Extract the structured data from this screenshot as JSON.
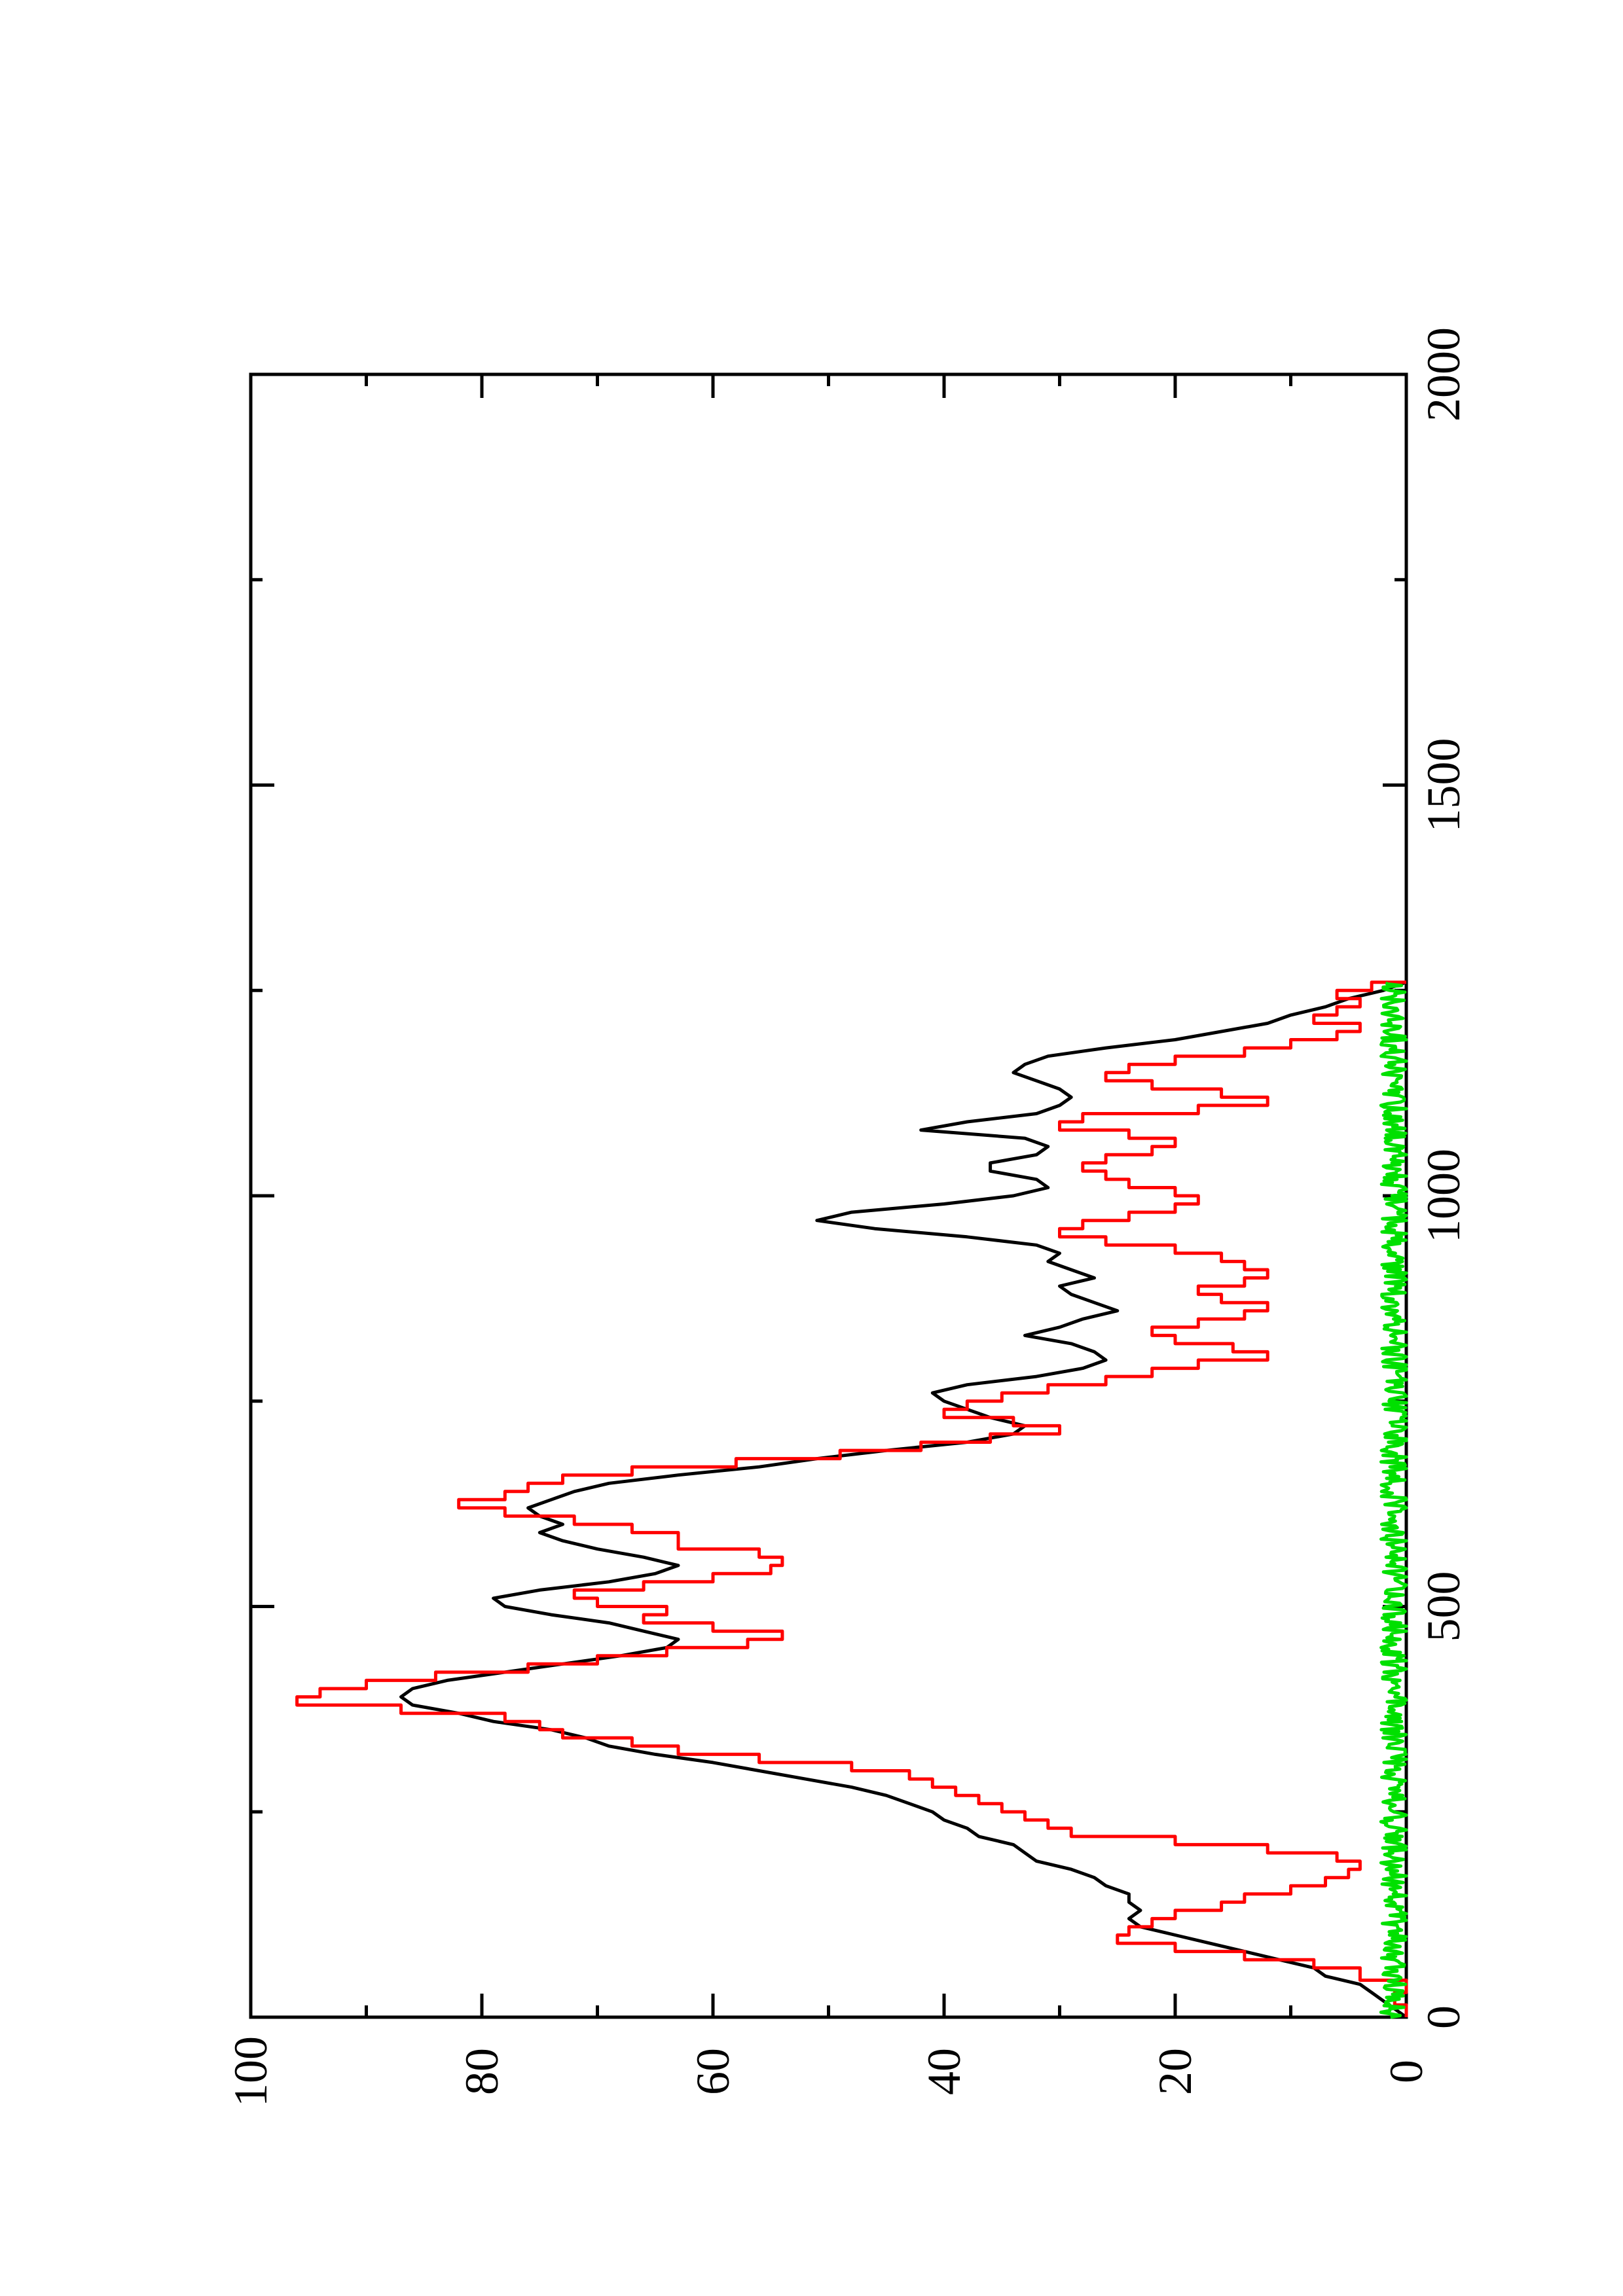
{
  "chart_data": {
    "type": "line",
    "title": "",
    "xlabel": "",
    "ylabel": "",
    "xlim": [
      0,
      2000
    ],
    "ylim": [
      0,
      100
    ],
    "x_ticks": [
      "0",
      "500",
      "1000",
      "1500",
      "2000"
    ],
    "y_ticks": [
      "0",
      "20",
      "40",
      "60",
      "80",
      "100"
    ],
    "x_minor_step": 250,
    "y_minor_step": 10,
    "orientation": "rotated 90 degrees counter-clockwise",
    "grid": false,
    "legend": "none",
    "series": [
      {
        "color": "#000000",
        "style": "line",
        "points": [
          [
            0,
            0
          ],
          [
            10,
            1
          ],
          [
            20,
            2
          ],
          [
            30,
            3
          ],
          [
            40,
            4
          ],
          [
            50,
            7
          ],
          [
            60,
            8
          ],
          [
            70,
            11
          ],
          [
            80,
            14
          ],
          [
            90,
            17
          ],
          [
            100,
            20
          ],
          [
            110,
            23
          ],
          [
            120,
            24
          ],
          [
            130,
            23
          ],
          [
            140,
            24
          ],
          [
            150,
            24
          ],
          [
            160,
            26
          ],
          [
            170,
            27
          ],
          [
            180,
            29
          ],
          [
            190,
            32
          ],
          [
            200,
            33
          ],
          [
            210,
            34
          ],
          [
            220,
            37
          ],
          [
            230,
            38
          ],
          [
            240,
            40
          ],
          [
            250,
            41
          ],
          [
            260,
            43
          ],
          [
            270,
            45
          ],
          [
            280,
            48
          ],
          [
            290,
            52
          ],
          [
            300,
            56
          ],
          [
            310,
            60
          ],
          [
            320,
            65
          ],
          [
            330,
            69
          ],
          [
            340,
            71
          ],
          [
            350,
            74
          ],
          [
            360,
            79
          ],
          [
            370,
            82
          ],
          [
            380,
            86
          ],
          [
            390,
            87
          ],
          [
            400,
            86
          ],
          [
            410,
            83
          ],
          [
            420,
            78
          ],
          [
            430,
            73
          ],
          [
            440,
            68
          ],
          [
            450,
            64
          ],
          [
            460,
            63
          ],
          [
            470,
            66
          ],
          [
            480,
            69
          ],
          [
            490,
            74
          ],
          [
            500,
            78
          ],
          [
            510,
            79
          ],
          [
            520,
            75
          ],
          [
            530,
            69
          ],
          [
            540,
            65
          ],
          [
            550,
            63
          ],
          [
            560,
            66
          ],
          [
            570,
            70
          ],
          [
            580,
            73
          ],
          [
            590,
            75
          ],
          [
            600,
            73
          ],
          [
            610,
            75
          ],
          [
            620,
            76
          ],
          [
            630,
            74
          ],
          [
            640,
            72
          ],
          [
            650,
            69
          ],
          [
            660,
            63
          ],
          [
            670,
            56
          ],
          [
            680,
            51
          ],
          [
            690,
            45
          ],
          [
            700,
            38
          ],
          [
            710,
            34
          ],
          [
            720,
            33
          ],
          [
            730,
            36
          ],
          [
            740,
            38
          ],
          [
            750,
            40
          ],
          [
            760,
            41
          ],
          [
            770,
            38
          ],
          [
            780,
            32
          ],
          [
            790,
            28
          ],
          [
            800,
            26
          ],
          [
            810,
            27
          ],
          [
            820,
            29
          ],
          [
            830,
            33
          ],
          [
            840,
            30
          ],
          [
            850,
            28
          ],
          [
            860,
            25
          ],
          [
            870,
            27
          ],
          [
            880,
            29
          ],
          [
            890,
            30
          ],
          [
            900,
            27
          ],
          [
            910,
            29
          ],
          [
            920,
            31
          ],
          [
            930,
            30
          ],
          [
            940,
            32
          ],
          [
            950,
            38
          ],
          [
            960,
            46
          ],
          [
            970,
            51
          ],
          [
            980,
            48
          ],
          [
            990,
            40
          ],
          [
            1000,
            34
          ],
          [
            1010,
            31
          ],
          [
            1020,
            32
          ],
          [
            1030,
            36
          ],
          [
            1040,
            36
          ],
          [
            1050,
            32
          ],
          [
            1060,
            31
          ],
          [
            1070,
            33
          ],
          [
            1080,
            42
          ],
          [
            1090,
            38
          ],
          [
            1100,
            32
          ],
          [
            1110,
            30
          ],
          [
            1120,
            29
          ],
          [
            1130,
            30
          ],
          [
            1140,
            32
          ],
          [
            1150,
            34
          ],
          [
            1160,
            33
          ],
          [
            1170,
            31
          ],
          [
            1180,
            26
          ],
          [
            1190,
            20
          ],
          [
            1200,
            16
          ],
          [
            1210,
            12
          ],
          [
            1220,
            10
          ],
          [
            1230,
            7
          ],
          [
            1240,
            5
          ],
          [
            1250,
            2
          ],
          [
            1260,
            0
          ]
        ]
      },
      {
        "color": "#ff0000",
        "style": "step",
        "points": [
          [
            0,
            0
          ],
          [
            15,
            1
          ],
          [
            30,
            0
          ],
          [
            45,
            4
          ],
          [
            60,
            8
          ],
          [
            70,
            14
          ],
          [
            80,
            20
          ],
          [
            90,
            25
          ],
          [
            100,
            24
          ],
          [
            110,
            22
          ],
          [
            120,
            20
          ],
          [
            130,
            16
          ],
          [
            140,
            14
          ],
          [
            150,
            10
          ],
          [
            160,
            7
          ],
          [
            170,
            5
          ],
          [
            180,
            4
          ],
          [
            190,
            6
          ],
          [
            200,
            12
          ],
          [
            210,
            20
          ],
          [
            220,
            29
          ],
          [
            230,
            31
          ],
          [
            240,
            33
          ],
          [
            250,
            35
          ],
          [
            260,
            37
          ],
          [
            270,
            39
          ],
          [
            280,
            41
          ],
          [
            290,
            43
          ],
          [
            300,
            48
          ],
          [
            310,
            56
          ],
          [
            320,
            63
          ],
          [
            330,
            67
          ],
          [
            340,
            73
          ],
          [
            350,
            75
          ],
          [
            360,
            78
          ],
          [
            370,
            87
          ],
          [
            380,
            96
          ],
          [
            390,
            94
          ],
          [
            400,
            90
          ],
          [
            410,
            84
          ],
          [
            420,
            76
          ],
          [
            430,
            70
          ],
          [
            440,
            64
          ],
          [
            450,
            57
          ],
          [
            460,
            54
          ],
          [
            470,
            60
          ],
          [
            480,
            66
          ],
          [
            490,
            64
          ],
          [
            500,
            70
          ],
          [
            510,
            72
          ],
          [
            520,
            66
          ],
          [
            530,
            60
          ],
          [
            540,
            55
          ],
          [
            550,
            54
          ],
          [
            560,
            56
          ],
          [
            570,
            63
          ],
          [
            580,
            63
          ],
          [
            590,
            67
          ],
          [
            600,
            72
          ],
          [
            610,
            78
          ],
          [
            620,
            82
          ],
          [
            630,
            78
          ],
          [
            640,
            76
          ],
          [
            650,
            73
          ],
          [
            660,
            67
          ],
          [
            670,
            58
          ],
          [
            680,
            49
          ],
          [
            690,
            42
          ],
          [
            700,
            36
          ],
          [
            710,
            30
          ],
          [
            720,
            34
          ],
          [
            730,
            40
          ],
          [
            740,
            38
          ],
          [
            750,
            35
          ],
          [
            760,
            31
          ],
          [
            770,
            26
          ],
          [
            780,
            22
          ],
          [
            790,
            18
          ],
          [
            800,
            12
          ],
          [
            810,
            15
          ],
          [
            820,
            20
          ],
          [
            830,
            22
          ],
          [
            840,
            18
          ],
          [
            850,
            14
          ],
          [
            860,
            12
          ],
          [
            870,
            16
          ],
          [
            880,
            18
          ],
          [
            890,
            14
          ],
          [
            900,
            12
          ],
          [
            910,
            14
          ],
          [
            920,
            16
          ],
          [
            930,
            20
          ],
          [
            940,
            26
          ],
          [
            950,
            30
          ],
          [
            960,
            28
          ],
          [
            970,
            24
          ],
          [
            980,
            20
          ],
          [
            990,
            18
          ],
          [
            1000,
            20
          ],
          [
            1010,
            24
          ],
          [
            1020,
            26
          ],
          [
            1030,
            28
          ],
          [
            1040,
            26
          ],
          [
            1050,
            22
          ],
          [
            1060,
            20
          ],
          [
            1070,
            24
          ],
          [
            1080,
            30
          ],
          [
            1090,
            28
          ],
          [
            1100,
            18
          ],
          [
            1110,
            12
          ],
          [
            1120,
            16
          ],
          [
            1130,
            22
          ],
          [
            1140,
            26
          ],
          [
            1150,
            24
          ],
          [
            1160,
            20
          ],
          [
            1170,
            14
          ],
          [
            1180,
            10
          ],
          [
            1190,
            6
          ],
          [
            1200,
            4
          ],
          [
            1210,
            8
          ],
          [
            1220,
            6
          ],
          [
            1230,
            4
          ],
          [
            1240,
            6
          ],
          [
            1250,
            3
          ],
          [
            1260,
            0
          ]
        ]
      },
      {
        "color": "#00e000",
        "style": "noise",
        "baseline": 1,
        "amplitude": 1.2,
        "xmax": 1260
      }
    ]
  }
}
